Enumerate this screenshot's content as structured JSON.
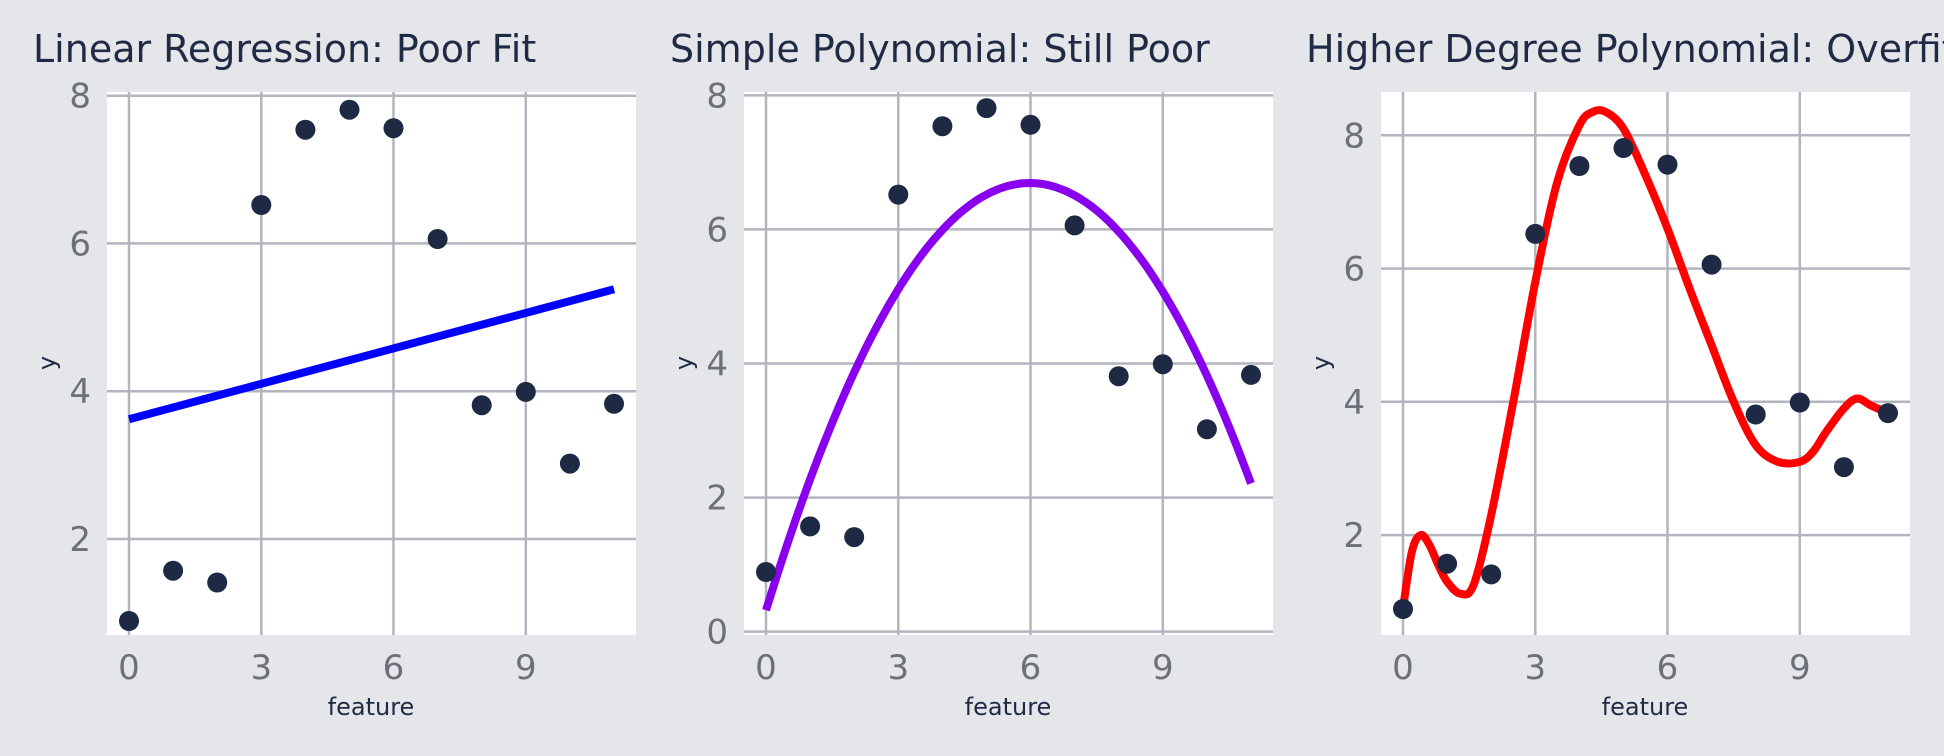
{
  "chart_data": [
    {
      "type": "scatter",
      "title": "Linear Regression: Poor Fit",
      "xlabel": "feature",
      "ylabel": "y",
      "xlim": [
        -0.5,
        11.5
      ],
      "ylim": [
        0.7,
        8.05
      ],
      "xticks": [
        0,
        3,
        6,
        9
      ],
      "yticks": [
        2,
        4,
        6,
        8
      ],
      "grid": true,
      "points": {
        "name": "",
        "color": "#1e2a44",
        "x": [
          0,
          1,
          2,
          3,
          4,
          5,
          6,
          7,
          8,
          9,
          10,
          11
        ],
        "y": [
          0.89,
          1.57,
          1.41,
          6.52,
          7.54,
          7.81,
          7.56,
          6.06,
          3.81,
          3.99,
          3.02,
          3.83
        ]
      },
      "fit": {
        "kind": "linear",
        "color": "#0000ff",
        "x_range": [
          0,
          11
        ],
        "coefficients": [
          3.62,
          0.16
        ]
      }
    },
    {
      "type": "scatter",
      "title": "Simple Polynomial: Still Poor",
      "xlabel": "feature",
      "ylabel": "y",
      "xlim": [
        -0.5,
        11.5
      ],
      "ylim": [
        -0.05,
        8.05
      ],
      "xticks": [
        0,
        3,
        6,
        9
      ],
      "yticks": [
        0,
        2,
        4,
        6,
        8
      ],
      "grid": true,
      "points": {
        "name": "",
        "color": "#1e2a44",
        "x": [
          0,
          1,
          2,
          3,
          4,
          5,
          6,
          7,
          8,
          9,
          10,
          11
        ],
        "y": [
          0.89,
          1.57,
          1.41,
          6.52,
          7.54,
          7.81,
          7.56,
          6.06,
          3.81,
          3.99,
          3.02,
          3.83
        ]
      },
      "fit": {
        "kind": "quadratic",
        "color": "#8800ee",
        "x_range": [
          0,
          11
        ],
        "coefficients": [
          0.32,
          2.13,
          -0.178
        ]
      }
    },
    {
      "type": "scatter",
      "title": "Higher Degree Polynomial: Overfit",
      "xlabel": "feature",
      "ylabel": "y",
      "xlim": [
        -0.5,
        11.5
      ],
      "ylim": [
        0.5,
        8.65
      ],
      "xticks": [
        0,
        3,
        6,
        9
      ],
      "yticks": [
        2,
        4,
        6,
        8
      ],
      "grid": true,
      "points": {
        "name": "",
        "color": "#1e2a44",
        "x": [
          0,
          1,
          2,
          3,
          4,
          5,
          6,
          7,
          8,
          9,
          10,
          11
        ],
        "y": [
          0.89,
          1.57,
          1.41,
          6.52,
          7.54,
          7.81,
          7.56,
          6.06,
          3.81,
          3.99,
          3.02,
          3.83
        ]
      },
      "fit": {
        "kind": "high-degree polynomial",
        "color": "#ff0000",
        "x": [
          0,
          0.2,
          0.4,
          0.6,
          0.8,
          1.0,
          1.3,
          1.6,
          2.0,
          2.5,
          3.0,
          3.5,
          4.0,
          4.3,
          4.6,
          5.0,
          5.5,
          6.0,
          6.5,
          7.0,
          7.5,
          8.0,
          8.5,
          9.0,
          9.3,
          9.6,
          10.0,
          10.3,
          10.6,
          11.0
        ],
        "y": [
          0.9,
          1.75,
          2.0,
          1.85,
          1.55,
          1.3,
          1.12,
          1.25,
          2.3,
          4.0,
          5.8,
          7.3,
          8.15,
          8.35,
          8.35,
          8.1,
          7.4,
          6.6,
          5.7,
          4.85,
          4.0,
          3.35,
          3.1,
          3.1,
          3.25,
          3.55,
          3.9,
          4.05,
          3.95,
          3.83
        ]
      }
    }
  ]
}
